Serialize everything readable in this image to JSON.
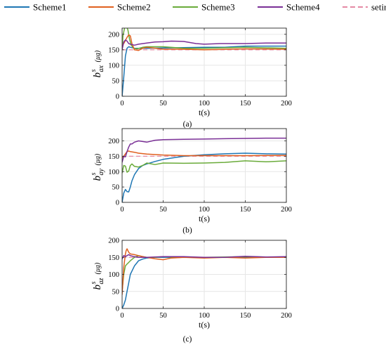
{
  "colors": {
    "Scheme1": "#1f77b4",
    "Scheme2": "#e0601f",
    "Scheme3": "#6aab3a",
    "Scheme4": "#7a2f96",
    "seting": "#e58aa5"
  },
  "legend": [
    "Scheme1",
    "Scheme2",
    "Scheme3",
    "Scheme4",
    "seting"
  ],
  "chart_data": [
    {
      "type": "line",
      "caption": "(a)",
      "xlabel": "t(s)",
      "ylabel": "b",
      "ylabel_sup": "s",
      "ylabel_sub": "ax",
      "ylabel_unit": "(μg)",
      "xlim": [
        0,
        200
      ],
      "ylim": [
        0,
        220
      ],
      "xticks": [
        0,
        50,
        100,
        150,
        200
      ],
      "yticks": [
        0,
        50,
        100,
        150,
        200
      ],
      "grid": true,
      "series": [
        {
          "name": "Scheme1",
          "x": [
            0,
            2,
            4,
            6,
            8,
            10,
            15,
            20,
            30,
            50,
            75,
            100,
            125,
            150,
            175,
            200
          ],
          "y": [
            0,
            60,
            130,
            155,
            160,
            158,
            155,
            155,
            155,
            156,
            157,
            158,
            158,
            162,
            162,
            162
          ]
        },
        {
          "name": "Scheme2",
          "x": [
            0,
            2,
            4,
            6,
            8,
            10,
            12,
            15,
            20,
            25,
            30,
            50,
            75,
            100,
            150,
            200
          ],
          "y": [
            165,
            170,
            180,
            190,
            198,
            195,
            170,
            150,
            148,
            155,
            158,
            152,
            152,
            150,
            153,
            152
          ]
        },
        {
          "name": "Scheme3",
          "x": [
            0,
            1,
            3,
            5,
            7,
            9,
            11,
            14,
            18,
            25,
            30,
            50,
            75,
            100,
            150,
            200
          ],
          "y": [
            150,
            195,
            220,
            226,
            215,
            185,
            165,
            155,
            153,
            158,
            160,
            160,
            155,
            155,
            158,
            155
          ]
        },
        {
          "name": "Scheme4",
          "x": [
            0,
            2,
            4,
            6,
            8,
            10,
            15,
            20,
            30,
            40,
            50,
            60,
            75,
            90,
            100,
            120,
            150,
            175,
            200
          ],
          "y": [
            150,
            175,
            182,
            178,
            170,
            168,
            165,
            168,
            172,
            175,
            176,
            178,
            177,
            170,
            168,
            170,
            170,
            172,
            172
          ]
        },
        {
          "name": "seting",
          "x": [
            0,
            200
          ],
          "y": [
            150,
            150
          ]
        }
      ]
    },
    {
      "type": "line",
      "caption": "(b)",
      "xlabel": "t(s)",
      "ylabel": "b",
      "ylabel_sup": "s",
      "ylabel_sub": "ay",
      "ylabel_unit": "(μg)",
      "xlim": [
        0,
        200
      ],
      "ylim": [
        0,
        240
      ],
      "xticks": [
        0,
        50,
        100,
        150,
        200
      ],
      "yticks": [
        0,
        50,
        100,
        150,
        200
      ],
      "grid": true,
      "series": [
        {
          "name": "Scheme1",
          "x": [
            0,
            2,
            4,
            6,
            8,
            10,
            12,
            15,
            20,
            25,
            30,
            40,
            50,
            75,
            100,
            125,
            150,
            175,
            200
          ],
          "y": [
            0,
            30,
            42,
            35,
            34,
            50,
            70,
            90,
            110,
            120,
            125,
            133,
            140,
            150,
            155,
            158,
            160,
            158,
            157
          ]
        },
        {
          "name": "Scheme2",
          "x": [
            0,
            2,
            4,
            6,
            8,
            10,
            15,
            20,
            30,
            50,
            75,
            100,
            150,
            200
          ],
          "y": [
            145,
            150,
            158,
            165,
            167,
            165,
            163,
            160,
            157,
            154,
            152,
            152,
            152,
            153
          ]
        },
        {
          "name": "Scheme3",
          "x": [
            0,
            2,
            4,
            6,
            8,
            10,
            12,
            15,
            20,
            25,
            30,
            40,
            50,
            75,
            100,
            125,
            150,
            175,
            200
          ],
          "y": [
            95,
            120,
            118,
            98,
            102,
            120,
            125,
            117,
            115,
            120,
            128,
            123,
            128,
            127,
            128,
            130,
            135,
            132,
            135
          ]
        },
        {
          "name": "Scheme4",
          "x": [
            0,
            2,
            4,
            6,
            8,
            10,
            12,
            15,
            20,
            25,
            30,
            40,
            50,
            75,
            100,
            125,
            150,
            175,
            200
          ],
          "y": [
            130,
            150,
            148,
            165,
            180,
            190,
            190,
            196,
            200,
            198,
            196,
            202,
            204,
            205,
            206,
            207,
            208,
            209,
            209
          ]
        },
        {
          "name": "seting",
          "x": [
            0,
            200
          ],
          "y": [
            150,
            150
          ]
        }
      ]
    },
    {
      "type": "line",
      "caption": "(c)",
      "xlabel": "t(s)",
      "ylabel": "b",
      "ylabel_sup": "s",
      "ylabel_sub": "az",
      "ylabel_unit": "(μg)",
      "xlim": [
        0,
        200
      ],
      "ylim": [
        0,
        200
      ],
      "xticks": [
        0,
        50,
        100,
        150,
        200
      ],
      "yticks": [
        0,
        50,
        100,
        150,
        200
      ],
      "grid": true,
      "series": [
        {
          "name": "Scheme1",
          "x": [
            0,
            2,
            4,
            6,
            8,
            10,
            15,
            20,
            25,
            30,
            40,
            50,
            75,
            100,
            150,
            200
          ],
          "y": [
            0,
            10,
            25,
            50,
            75,
            100,
            125,
            140,
            145,
            148,
            150,
            150,
            150,
            150,
            150,
            150
          ]
        },
        {
          "name": "Scheme2",
          "x": [
            0,
            2,
            4,
            5,
            6,
            8,
            10,
            15,
            20,
            30,
            40,
            50,
            60,
            75,
            100,
            125,
            150,
            175,
            200
          ],
          "y": [
            40,
            120,
            160,
            170,
            175,
            165,
            160,
            158,
            155,
            150,
            146,
            143,
            148,
            150,
            148,
            150,
            148,
            150,
            150
          ]
        },
        {
          "name": "Scheme3",
          "x": [
            0,
            2,
            4,
            6,
            8,
            10,
            15,
            20,
            25,
            30,
            40,
            50,
            75,
            100,
            150,
            200
          ],
          "y": [
            50,
            100,
            125,
            130,
            135,
            140,
            150,
            155,
            152,
            150,
            150,
            152,
            150,
            150,
            152,
            150
          ]
        },
        {
          "name": "Scheme4",
          "x": [
            0,
            2,
            4,
            6,
            8,
            10,
            15,
            20,
            30,
            50,
            75,
            100,
            125,
            150,
            175,
            200
          ],
          "y": [
            145,
            155,
            152,
            155,
            158,
            155,
            152,
            150,
            150,
            152,
            152,
            150,
            150,
            153,
            151,
            152
          ]
        },
        {
          "name": "seting",
          "x": [
            0,
            200
          ],
          "y": [
            150,
            150
          ]
        }
      ]
    }
  ]
}
